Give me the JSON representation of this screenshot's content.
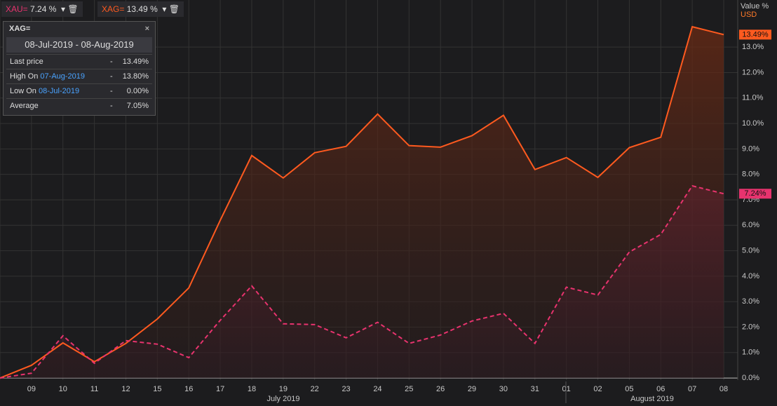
{
  "chart_data": {
    "type": "line",
    "categories": [
      null,
      "09",
      "10",
      "11",
      "12",
      "15",
      "16",
      "17",
      "18",
      "19",
      "22",
      "23",
      "24",
      "25",
      "26",
      "29",
      "30",
      "31",
      "01",
      "02",
      "05",
      "06",
      "07",
      "08"
    ],
    "x_group_labels": [
      "July 2019",
      "August 2019"
    ],
    "y_axis_label": "Value %",
    "y_axis_unit": "USD",
    "series": [
      {
        "name": "XAU=",
        "color": "#e8336e",
        "dashed": true,
        "legend_label": "7.24 %",
        "axis_label": "7.24%",
        "values": [
          0,
          0.19,
          1.66,
          0.58,
          1.47,
          1.33,
          0.8,
          2.27,
          3.62,
          2.13,
          2.1,
          1.58,
          2.19,
          1.36,
          1.69,
          2.24,
          2.54,
          1.36,
          3.57,
          3.26,
          4.95,
          5.64,
          7.55,
          7.24
        ]
      },
      {
        "name": "XAG=",
        "color": "#ff5a1f",
        "dashed": false,
        "legend_label": "13.49 %",
        "axis_label": "13.49%",
        "values": [
          0,
          0.5,
          1.38,
          0.64,
          1.36,
          2.32,
          3.54,
          6.2,
          8.74,
          7.86,
          8.85,
          9.1,
          10.37,
          9.13,
          9.07,
          9.52,
          10.32,
          8.19,
          8.66,
          7.88,
          9.05,
          9.46,
          13.8,
          13.49
        ]
      }
    ],
    "ylim": [
      -0.08,
      14.85
    ],
    "yticks": [
      {
        "value": 0,
        "label": "0.0%"
      },
      {
        "value": 1,
        "label": "1.0%"
      },
      {
        "value": 2,
        "label": "2.0%"
      },
      {
        "value": 3,
        "label": "3.0%"
      },
      {
        "value": 4,
        "label": "4.0%"
      },
      {
        "value": 5,
        "label": "5.0%"
      },
      {
        "value": 6,
        "label": "6.0%"
      },
      {
        "value": 7,
        "label": "7.0%"
      },
      {
        "value": 8,
        "label": "8.0%"
      },
      {
        "value": 9,
        "label": "9.0%"
      },
      {
        "value": 10,
        "label": "10.0%"
      },
      {
        "value": 11,
        "label": "11.0%"
      },
      {
        "value": 12,
        "label": "12.0%"
      },
      {
        "value": 13,
        "label": "13.0%"
      }
    ],
    "grid": true
  },
  "info_panel": {
    "title": "XAG=",
    "range": "08-Jul-2019 - 08-Aug-2019",
    "rows": [
      [
        "Last price",
        "",
        "-",
        "13.49%"
      ],
      [
        "High On",
        "07-Aug-2019",
        "-",
        "13.80%"
      ],
      [
        "Low On",
        "08-Jul-2019",
        "-",
        "0.00%"
      ],
      [
        "Average",
        "",
        "-",
        "7.05%"
      ]
    ]
  }
}
